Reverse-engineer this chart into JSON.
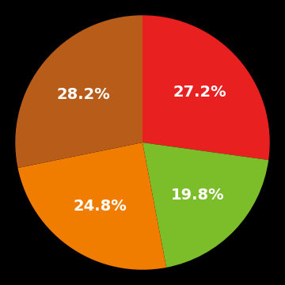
{
  "slices": [
    27.2,
    19.8,
    24.8,
    28.2
  ],
  "colors": [
    "#e82020",
    "#7cbd2a",
    "#f07d00",
    "#b85c1a"
  ],
  "labels": [
    "27.2%",
    "19.8%",
    "24.8%",
    "28.2%"
  ],
  "background_color": "#000000",
  "text_color": "#ffffff",
  "label_fontsize": 14,
  "label_fontweight": "bold",
  "startangle": 90
}
